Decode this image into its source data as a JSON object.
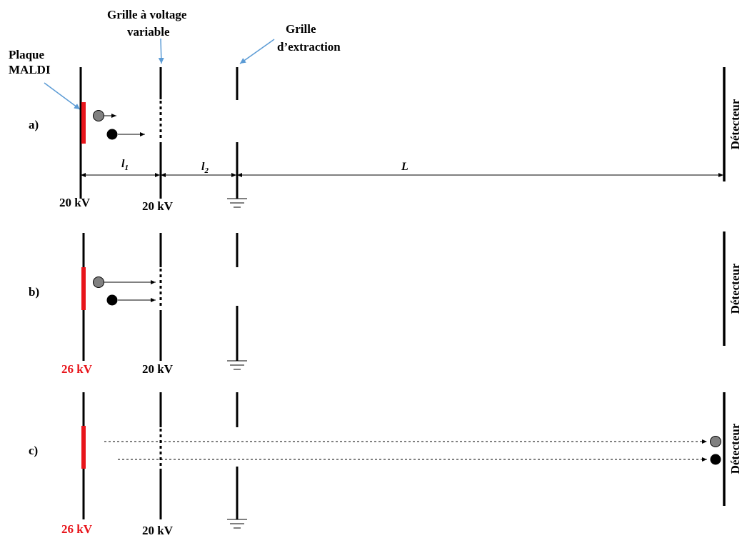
{
  "labels": {
    "plaque": [
      "Plaque",
      "MALDI"
    ],
    "grille_variable": [
      "Grille à voltage",
      "variable"
    ],
    "grille_extraction": [
      "Grille",
      "d’extraction"
    ],
    "detecteur": "Détecteur"
  },
  "distances": {
    "l1": {
      "base": "l",
      "sub": "1"
    },
    "l2": {
      "base": "l",
      "sub": "2"
    },
    "L": "L"
  },
  "colors": {
    "plate": "#e8151b",
    "lines": "#000000",
    "pointer": "#5b9bd5",
    "ion_light": "#808080",
    "ion_heavy": "#000000",
    "voltage_high": "#e8151b"
  },
  "panels": [
    {
      "id": "a",
      "label": "a)",
      "plate_voltage": "20 kV",
      "plate_voltage_color": "#000000",
      "grid_voltage": "20 kV"
    },
    {
      "id": "b",
      "label": "b)",
      "plate_voltage": "26 kV",
      "plate_voltage_color": "#e8151b",
      "grid_voltage": "20 kV"
    },
    {
      "id": "c",
      "label": "c)",
      "plate_voltage": "26 kV",
      "plate_voltage_color": "#e8151b",
      "grid_voltage": "20 kV"
    }
  ]
}
